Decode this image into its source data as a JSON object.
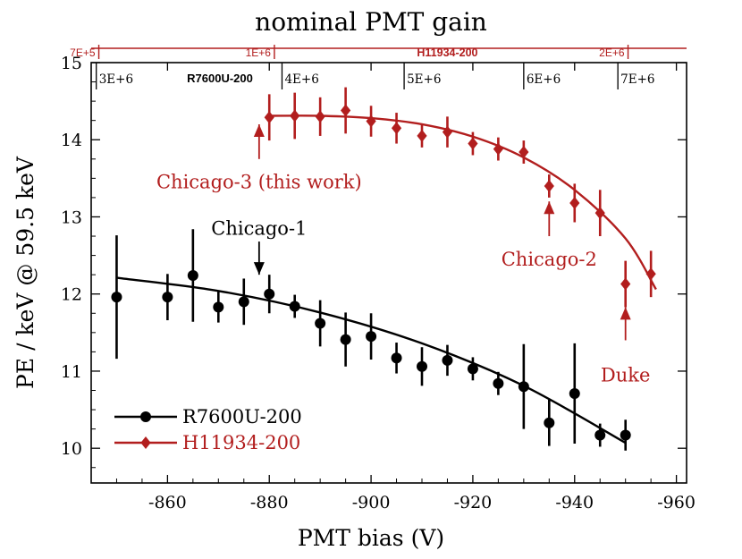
{
  "chart_data": {
    "type": "scatter",
    "title": "nominal PMT gain",
    "xlabel": "PMT bias (V)",
    "ylabel": "PE / keV @ 59.5 keV",
    "xlim": [
      -845,
      -962
    ],
    "ylim": [
      9.55,
      15.0
    ],
    "x_ticks": [
      -860,
      -880,
      -900,
      -920,
      -940,
      -960
    ],
    "x_tick_labels": [
      "-860",
      "-880",
      "-900",
      "-920",
      "-940",
      "-960"
    ],
    "y_ticks": [
      10,
      11,
      12,
      13,
      14,
      15
    ],
    "y_tick_labels": [
      "10",
      "11",
      "12",
      "13",
      "14",
      "15"
    ],
    "top_axis_red": {
      "label": "H11934-200",
      "ticks": [
        {
          "x": -846.5,
          "label": "7E+5"
        },
        {
          "x": -881,
          "label": "1E+6"
        },
        {
          "x": -950.5,
          "label": "2E+6"
        }
      ]
    },
    "top_axis_black": {
      "label": "R7600U-200",
      "ticks": [
        {
          "x": -846,
          "label": "3E+6"
        },
        {
          "x": -882.5,
          "label": "4E+6"
        },
        {
          "x": -906.5,
          "label": "5E+6"
        },
        {
          "x": -930,
          "label": "6E+6"
        },
        {
          "x": -948.5,
          "label": "7E+6"
        }
      ]
    },
    "series": [
      {
        "name": "R7600U-200",
        "color": "#000000",
        "marker": "circle",
        "x": [
          -850,
          -860,
          -865,
          -870,
          -875,
          -880,
          -885,
          -890,
          -895,
          -900,
          -905,
          -910,
          -915,
          -920,
          -925,
          -930,
          -935,
          -940,
          -945,
          -950
        ],
        "y": [
          11.96,
          11.96,
          12.24,
          11.83,
          11.9,
          12.0,
          11.84,
          11.62,
          11.41,
          11.45,
          11.17,
          11.06,
          11.14,
          11.03,
          10.84,
          10.8,
          10.33,
          10.71,
          10.17,
          10.17
        ],
        "err": [
          0.8,
          0.3,
          0.6,
          0.2,
          0.3,
          0.25,
          0.15,
          0.3,
          0.35,
          0.3,
          0.2,
          0.25,
          0.2,
          0.15,
          0.15,
          0.55,
          0.3,
          0.65,
          0.15,
          0.2
        ],
        "fit": {
          "x": [
            -850,
            -870,
            -890,
            -910,
            -930,
            -950
          ],
          "y": [
            12.21,
            12.04,
            11.76,
            11.36,
            10.81,
            10.07
          ]
        }
      },
      {
        "name": "H11934-200",
        "color": "#b21e1e",
        "marker": "diamond",
        "x": [
          -880,
          -885,
          -890,
          -895,
          -900,
          -905,
          -910,
          -915,
          -920,
          -925,
          -930,
          -935,
          -940,
          -945,
          -950,
          -955
        ],
        "y": [
          14.29,
          14.31,
          14.3,
          14.38,
          14.24,
          14.15,
          14.05,
          14.1,
          13.95,
          13.88,
          13.84,
          13.4,
          13.18,
          13.05,
          12.13,
          12.26
        ],
        "err": [
          0.3,
          0.3,
          0.25,
          0.3,
          0.2,
          0.2,
          0.15,
          0.2,
          0.15,
          0.15,
          0.15,
          0.15,
          0.25,
          0.3,
          0.3,
          0.3
        ],
        "fit": {
          "x": [
            -880,
            -890,
            -900,
            -910,
            -920,
            -930,
            -940,
            -950,
            -956
          ],
          "y": [
            14.31,
            14.31,
            14.28,
            14.2,
            14.04,
            13.77,
            13.35,
            12.72,
            12.06
          ]
        }
      }
    ],
    "annotations": [
      {
        "text": "Chicago-3 (this work)",
        "color": "#b21e1e",
        "arrow_x": -878,
        "arrow_from": 13.75,
        "arrow_to": 14.2,
        "label_y": 13.45,
        "anchor": "middle"
      },
      {
        "text": "Chicago-2",
        "color": "#b21e1e",
        "arrow_x": -935,
        "arrow_from": 12.75,
        "arrow_to": 13.2,
        "label_y": 12.45,
        "anchor": "middle"
      },
      {
        "text": "Duke",
        "color": "#b21e1e",
        "arrow_x": -950,
        "arrow_from": 11.4,
        "arrow_to": 11.83,
        "label_y": 10.95,
        "anchor": "middle"
      },
      {
        "text": "Chicago-1",
        "color": "#000000",
        "arrow_x": -878,
        "arrow_from": 12.68,
        "arrow_to": 12.25,
        "label_y": 12.85,
        "anchor": "middle"
      }
    ],
    "legend": {
      "position": "bottom-left",
      "entries": [
        "R7600U-200",
        "H11934-200"
      ]
    }
  }
}
